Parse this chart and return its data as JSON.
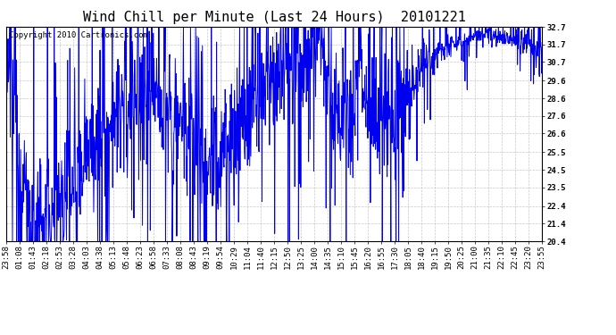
{
  "title": "Wind Chill per Minute (Last 24 Hours)  20101221",
  "copyright_text": "Copyright 2010 Cartronics.com",
  "line_color": "#0000EE",
  "background_color": "#ffffff",
  "plot_bg_color": "#ffffff",
  "grid_color": "#bbbbbb",
  "ylim": [
    20.4,
    32.7
  ],
  "yticks": [
    20.4,
    21.4,
    22.4,
    23.5,
    24.5,
    25.5,
    26.6,
    27.6,
    28.6,
    29.6,
    30.7,
    31.7,
    32.7
  ],
  "xtick_labels": [
    "23:58",
    "01:08",
    "01:43",
    "02:18",
    "02:53",
    "03:28",
    "04:03",
    "04:38",
    "05:13",
    "05:48",
    "06:23",
    "06:58",
    "07:33",
    "08:08",
    "08:43",
    "09:19",
    "09:54",
    "10:29",
    "11:04",
    "11:40",
    "12:15",
    "12:50",
    "13:25",
    "14:00",
    "14:35",
    "15:10",
    "15:45",
    "16:20",
    "16:55",
    "17:30",
    "18:05",
    "18:40",
    "19:15",
    "19:50",
    "20:25",
    "21:00",
    "21:35",
    "22:10",
    "22:45",
    "23:20",
    "23:55"
  ],
  "title_fontsize": 11,
  "tick_fontsize": 6.5,
  "copyright_fontsize": 6.5,
  "line_width": 0.7
}
